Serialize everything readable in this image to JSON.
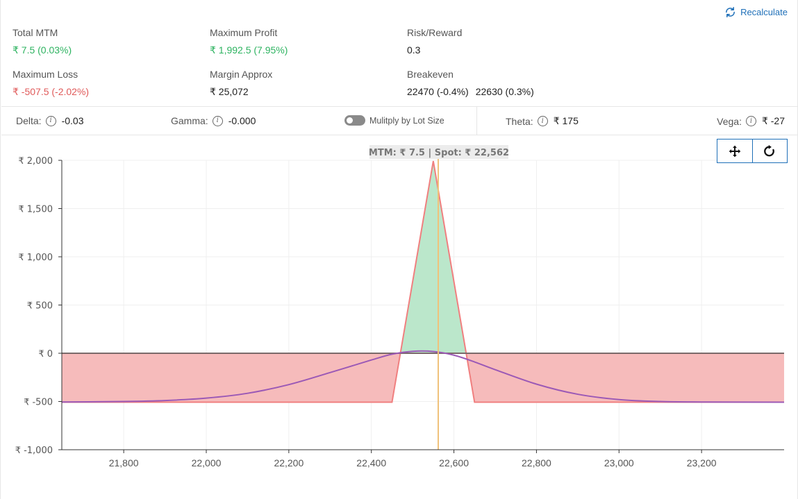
{
  "header": {
    "recalculate_label": "Recalculate"
  },
  "stats": {
    "total_mtm": {
      "label": "Total MTM",
      "value": "₹ 7.5 (0.03%)"
    },
    "max_profit": {
      "label": "Maximum Profit",
      "value": "₹ 1,992.5 (7.95%)"
    },
    "risk_reward": {
      "label": "Risk/Reward",
      "value": "0.3"
    },
    "max_loss": {
      "label": "Maximum Loss",
      "value": "₹ -507.5 (-2.02%)"
    },
    "margin": {
      "label": "Margin Approx",
      "value": "₹ 25,072"
    },
    "breakeven": {
      "label": "Breakeven",
      "values": [
        "22470 (-0.4%)",
        "22630 (0.3%)"
      ]
    }
  },
  "greeks": {
    "delta": {
      "label": "Delta:",
      "value": "-0.03"
    },
    "gamma": {
      "label": "Gamma:",
      "value": "-0.000"
    },
    "multiply_label": "Mulitply by Lot Size",
    "multiply_enabled": false,
    "theta": {
      "label": "Theta:",
      "value": "₹ 175"
    },
    "vega": {
      "label": "Vega:",
      "value": "₹ -27"
    }
  },
  "colors": {
    "profit": "#2db360",
    "loss": "#e05a5a",
    "accent": "#1e6fb8",
    "profit_fill": "#b7e6c8",
    "loss_fill": "#f6b7b7",
    "theoretical_line": "#9b59b6",
    "spot_line": "#f0c27a"
  },
  "chart_data": {
    "type": "area",
    "tooltip": "MTM: ₹ 7.5   |   Spot: ₹ 22,562",
    "xlim": [
      21650,
      23400
    ],
    "ylim": [
      -1000,
      2000
    ],
    "x_ticks": [
      21800,
      22000,
      22200,
      22400,
      22600,
      22800,
      23000,
      23200
    ],
    "x_tick_labels": [
      "21,800",
      "22,000",
      "22,200",
      "22,400",
      "22,600",
      "22,800",
      "23,000",
      "23,200"
    ],
    "y_ticks": [
      2000,
      1500,
      1000,
      500,
      0,
      -500,
      -1000
    ],
    "y_tick_labels": [
      "₹ 2,000",
      "₹ 1,500",
      "₹ 1,000",
      "₹ 500",
      "₹ 0",
      "₹ -500",
      "₹ -1,000"
    ],
    "grid": true,
    "spot": 22562,
    "series": [
      {
        "kind": "expiry_payoff",
        "x": [
          21650,
          22450,
          22550,
          22650,
          23400
        ],
        "y": [
          -507.5,
          -507.5,
          1992.5,
          -507.5,
          -507.5
        ]
      },
      {
        "kind": "target_day_payoff",
        "x": [
          21650,
          21800,
          21900,
          22000,
          22100,
          22200,
          22300,
          22400,
          22450,
          22500,
          22550,
          22600,
          22650,
          22700,
          22800,
          22900,
          23000,
          23100,
          23200,
          23400
        ],
        "y": [
          -505,
          -500,
          -490,
          -465,
          -415,
          -325,
          -200,
          -70,
          -10,
          20,
          18,
          -20,
          -90,
          -170,
          -320,
          -425,
          -480,
          -500,
          -505,
          -507
        ]
      }
    ]
  }
}
